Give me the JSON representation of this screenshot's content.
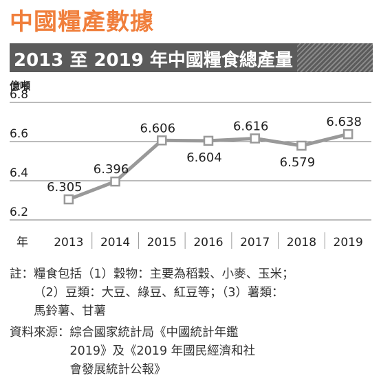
{
  "headline": "中國糧產數據",
  "banner": {
    "title": "2013 至 2019 年中國糧食總產量"
  },
  "colors": {
    "accent": "#f07f3c",
    "banner_bg": "#5b5b5b",
    "line": "#999999"
  },
  "chart_data": {
    "type": "line",
    "title": "2013 至 2019 年中國糧食總產量",
    "ylabel": "億噸",
    "xlabel": "年",
    "categories": [
      "2013",
      "2014",
      "2015",
      "2016",
      "2017",
      "2018",
      "2019"
    ],
    "values": [
      6.305,
      6.396,
      6.606,
      6.604,
      6.616,
      6.579,
      6.638
    ],
    "value_labels": [
      "6.305",
      "6.396",
      "6.606",
      "6.604",
      "6.616",
      "6.579",
      "6.638"
    ],
    "yticks": [
      "6.2",
      "6.4",
      "6.6",
      "6.8"
    ],
    "ylim": [
      6.2,
      6.8
    ],
    "grid": "horizontal",
    "marker": "square"
  },
  "notes": {
    "note_label": "註：",
    "note_text": "糧食包括（1）穀物：主要為稻穀、小麥、玉米；\n（2）豆類：大豆、綠豆、紅豆等；（3）薯類：\n馬鈴薯、甘薯",
    "source_label": "資料來源：",
    "source_text": "綜合國家統計局《中國統計年鑑\n2019》及《2019 年國民經濟和社\n會發展統計公報》"
  }
}
